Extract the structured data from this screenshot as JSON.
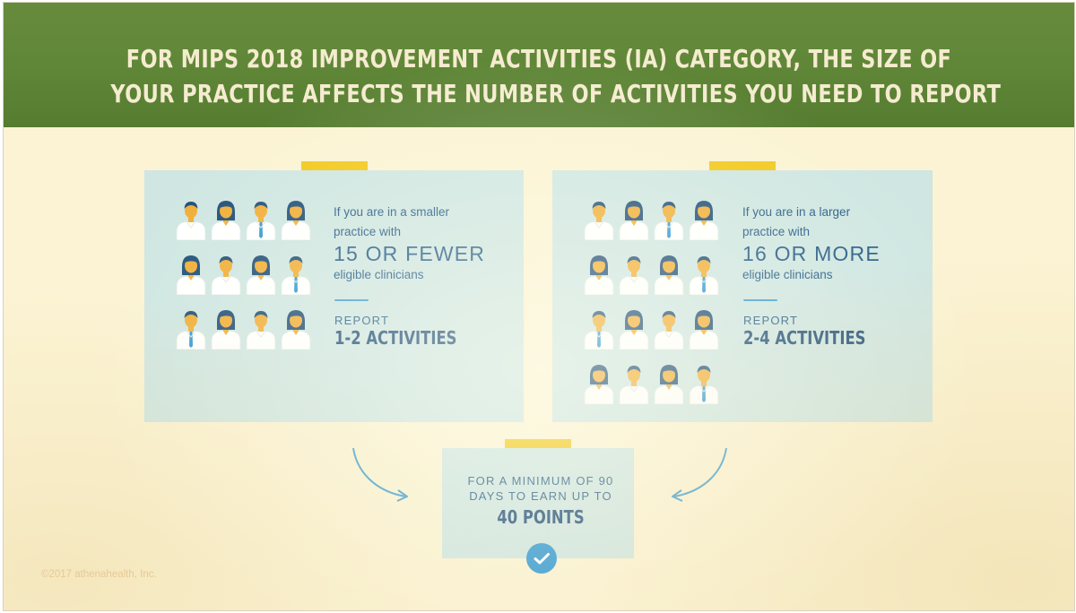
{
  "header": {
    "title_line1": "FOR MIPS 2018 IMPROVEMENT ACTIVITIES (IA) CATEGORY, THE SIZE OF",
    "title_line2": "YOUR PRACTICE AFFECTS THE NUMBER OF ACTIVITIES YOU NEED TO REPORT"
  },
  "small_practice": {
    "intro_line1": "If you are in a smaller",
    "intro_line2": "practice with",
    "count": "15 OR FEWER",
    "clinicians": "eligible clinicians",
    "report_label": "REPORT",
    "report_value": "1-2 ACTIVITIES",
    "clinician_icons": 12
  },
  "large_practice": {
    "intro_line1": "If you are in a larger",
    "intro_line2": "practice with",
    "count": "16 OR MORE",
    "clinicians": "eligible clinicians",
    "report_label": "REPORT",
    "report_value": "2-4 ACTIVITIES",
    "clinician_icons": 16
  },
  "result": {
    "line1": "FOR A MINIMUM OF 90",
    "line2": "DAYS TO EARN UP TO",
    "points": "40 POINTS",
    "icon": "checkmark-icon"
  },
  "footer": {
    "copyright": "©2017 athenahealth, Inc."
  },
  "colors": {
    "header_green": "#5f8637",
    "background_cream": "#fbf3d3",
    "card_teal": "#cfe6e2",
    "accent_yellow": "#f2c81a",
    "text_blue": "#235a85",
    "accent_blue": "#2f97d3"
  }
}
